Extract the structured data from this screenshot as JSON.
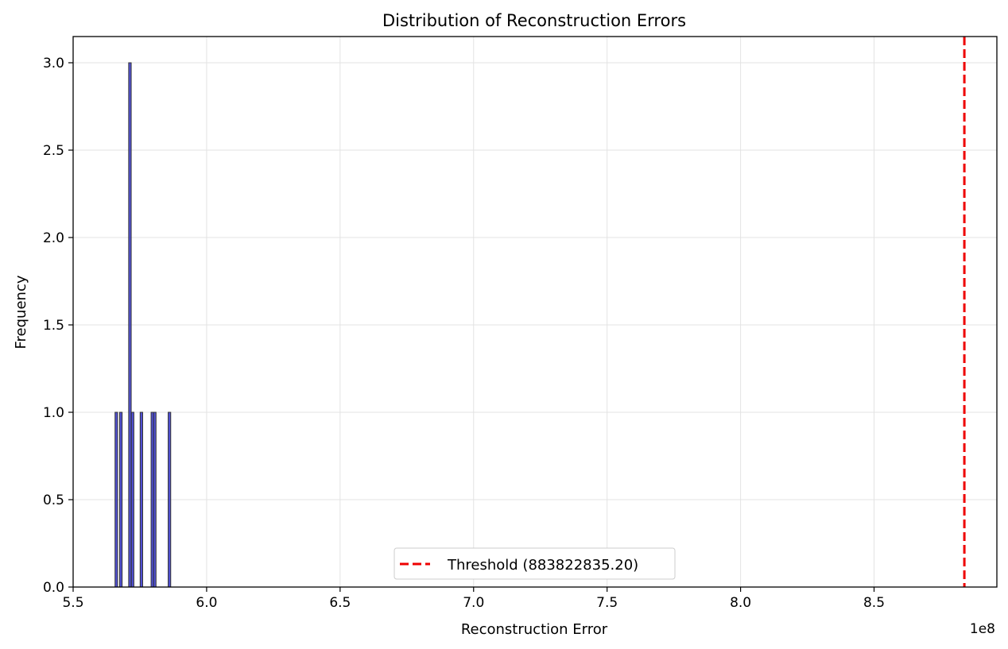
{
  "chart_data": {
    "type": "bar",
    "title": "Distribution of Reconstruction Errors",
    "xlabel": "Reconstruction Error",
    "ylabel": "Frequency",
    "x_offset_label": "1e8",
    "xlim": [
      5.5,
      8.96
    ],
    "ylim": [
      0,
      3.15
    ],
    "x_ticks": [
      5.5,
      6.0,
      6.5,
      7.0,
      7.5,
      8.0,
      8.5
    ],
    "x_tick_labels": [
      "5.5",
      "6.0",
      "6.5",
      "7.0",
      "7.5",
      "8.0",
      "8.5"
    ],
    "y_ticks": [
      0,
      0.5,
      1,
      1.5,
      2,
      2.5,
      3
    ],
    "y_tick_labels": [
      "0.0",
      "0.5",
      "1.0",
      "1.5",
      "2.0",
      "2.5",
      "3.0"
    ],
    "grid": true,
    "legend_position": "lower-center",
    "bins": [
      {
        "x": 5.657,
        "count": 1
      },
      {
        "x": 5.674,
        "count": 1
      },
      {
        "x": 5.708,
        "count": 3
      },
      {
        "x": 5.718,
        "count": 1
      },
      {
        "x": 5.751,
        "count": 1
      },
      {
        "x": 5.792,
        "count": 1
      },
      {
        "x": 5.801,
        "count": 1
      },
      {
        "x": 5.856,
        "count": 1
      }
    ],
    "bin_width": 0.0095,
    "bar_color": "#3333cc",
    "bar_edge_color": "#333333",
    "threshold": {
      "value": 8.838228352,
      "label": "Threshold (883822835.20)",
      "color": "#ee0000"
    }
  }
}
